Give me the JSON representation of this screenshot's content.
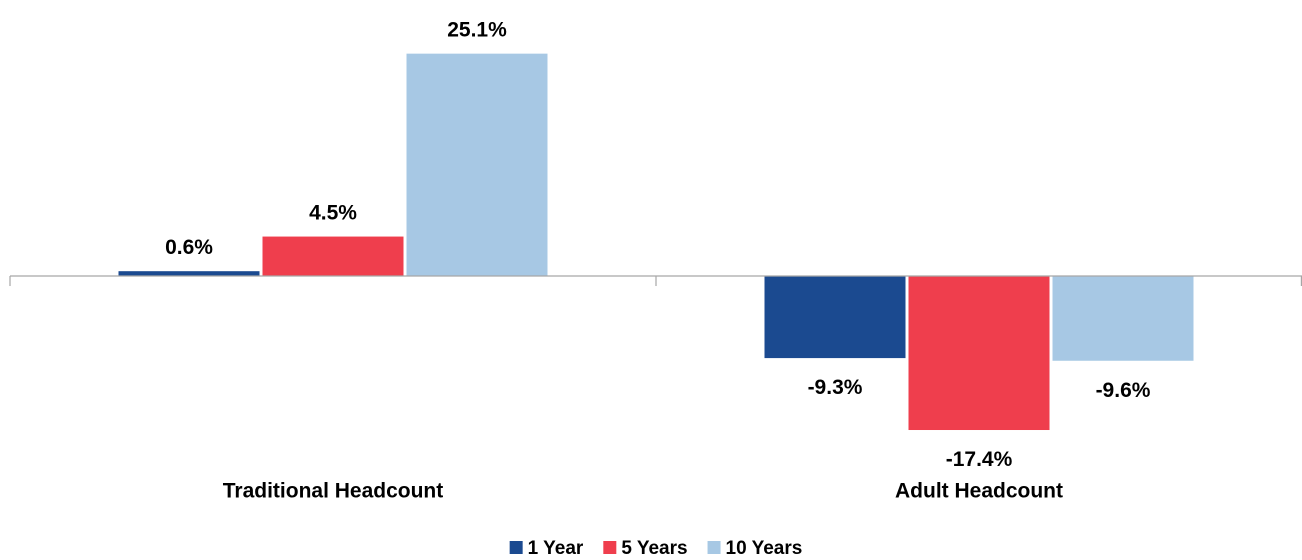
{
  "chart_data": {
    "type": "bar",
    "categories": [
      "Traditional Headcount",
      "Adult Headcount"
    ],
    "series": [
      {
        "name": "1 Year",
        "color": "#1b4a90",
        "values": [
          0.6,
          -9.3
        ],
        "value_labels": [
          "0.6%",
          "-9.3%"
        ]
      },
      {
        "name": "5 Years",
        "color": "#ef3e4d",
        "values": [
          4.5,
          -17.4
        ],
        "value_labels": [
          "4.5%",
          "-17.4%"
        ]
      },
      {
        "name": "10 Years",
        "color": "#a7c8e4",
        "values": [
          25.1,
          -9.6
        ],
        "value_labels": [
          "25.1%",
          "-9.6%"
        ]
      }
    ],
    "ylim": [
      -20,
      28
    ],
    "legend": "bottom"
  }
}
